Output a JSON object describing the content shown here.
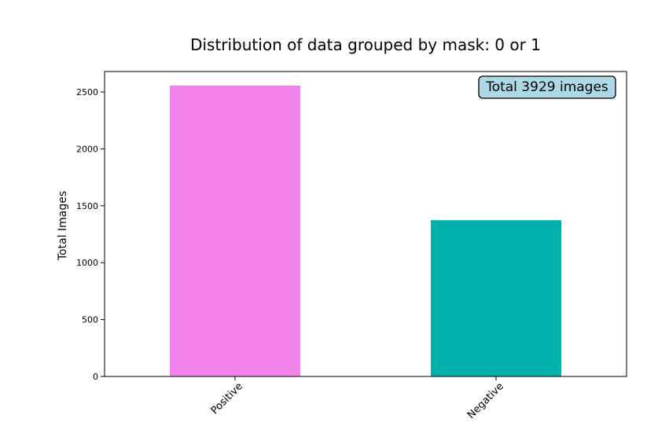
{
  "chart_data": {
    "type": "bar",
    "title": "Distribution of data grouped by mask: 0 or 1",
    "xlabel": "",
    "ylabel": "Total Images",
    "categories": [
      "Positive",
      "Negative"
    ],
    "values": [
      2556,
      1373
    ],
    "colors": [
      "#f283ea",
      "#00b0aa"
    ],
    "ylim": [
      0,
      2680
    ],
    "yticks": [
      0,
      500,
      1000,
      1500,
      2000,
      2500
    ],
    "grid": false,
    "legend": "none",
    "xtick_rotation": -45,
    "annotation": {
      "text": "Total 3929 images",
      "placement": "top-right",
      "facecolor": "#add8e6",
      "edgecolor": "#000000"
    }
  }
}
